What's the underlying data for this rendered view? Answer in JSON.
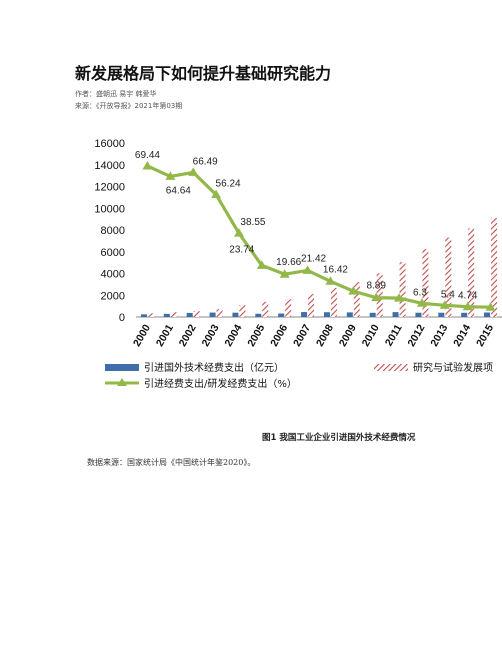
{
  "article": {
    "title": "新发展格局下如何提升基础研究能力",
    "author": "作者：盛朝迅 易宇 韩爱华",
    "source": "来源：《开放导报》2021年第03期"
  },
  "figure": {
    "caption": "图1 我国工业企业引进国外技术经费情况",
    "data_source": "数据来源：国家统计局《中国统计年鉴2020》。"
  },
  "colors": {
    "bar_intro": "#3f6ea8",
    "bar_rd": "#c0504d",
    "line": "#93b84a",
    "axis": "#888888"
  },
  "chart_data": {
    "type": "bar",
    "categories": [
      "2000",
      "2001",
      "2002",
      "2003",
      "2004",
      "2005",
      "2006",
      "2007",
      "2008",
      "2009",
      "2010",
      "2011",
      "2012",
      "2013",
      "2014",
      "2015"
    ],
    "ylim": [
      0,
      16000
    ],
    "yticks": [
      0,
      2000,
      4000,
      6000,
      8000,
      10000,
      12000,
      14000,
      16000
    ],
    "legend_position": "bottom",
    "series": [
      {
        "name": "引进国外技术经费支出（亿元）",
        "kind": "bar",
        "style": "solid",
        "values": [
          245,
          286,
          372,
          405,
          397,
          297,
          320,
          453,
          440,
          423,
          386,
          449,
          394,
          394,
          387,
          414
        ]
      },
      {
        "name": "研究与试验发展项",
        "kind": "bar",
        "style": "hatched",
        "values": [
          354,
          443,
          560,
          720,
          1100,
          1400,
          1630,
          2110,
          2680,
          3210,
          4020,
          5050,
          6250,
          7300,
          8150,
          9120
        ]
      },
      {
        "name": "引进经费支出/研发经费支出（%）",
        "kind": "line",
        "values": [
          69.44,
          64.64,
          66.49,
          56.24,
          38.55,
          23.74,
          19.66,
          21.42,
          16.42,
          11.9,
          8.89,
          8.7,
          6.3,
          5.4,
          4.74,
          4.5
        ],
        "labels": [
          "69.44",
          "64.64",
          "66.49",
          "56.24",
          "38.55",
          "23.74",
          "19.66",
          "21.42",
          "16.42",
          "",
          "8.89",
          "",
          "6.3",
          "5.4",
          "4.74",
          ""
        ]
      }
    ]
  }
}
